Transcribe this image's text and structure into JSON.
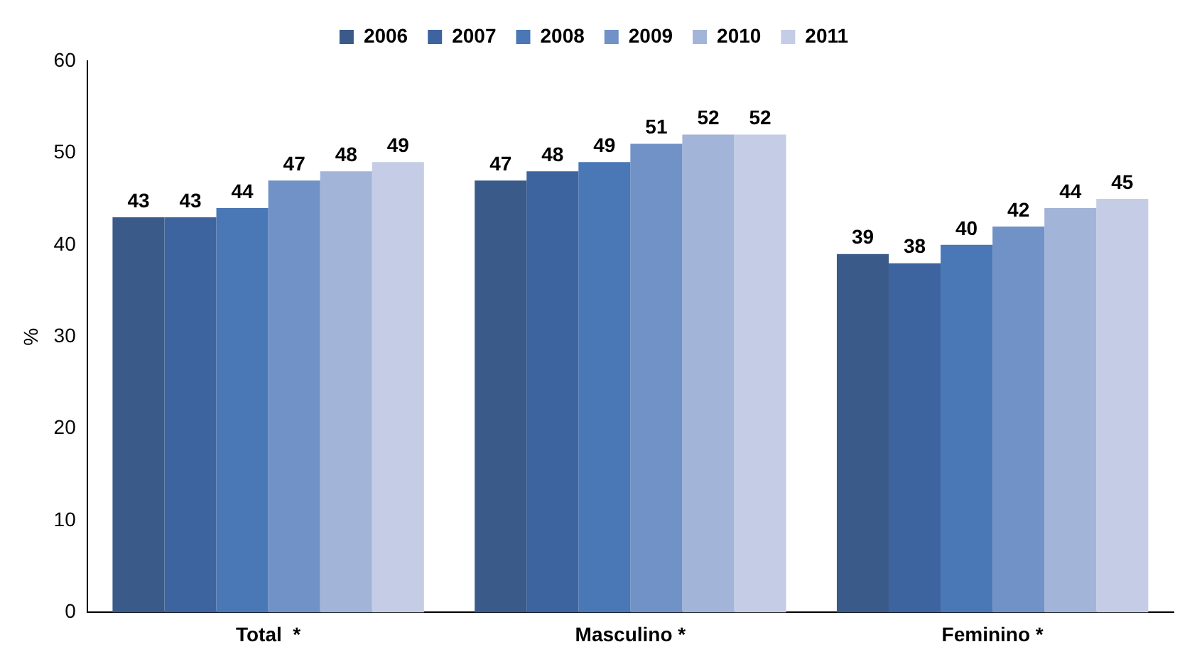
{
  "chart_data": {
    "type": "bar",
    "ylabel": "%",
    "categories": [
      "Total  *",
      "Masculino *",
      "Feminino *"
    ],
    "series": [
      {
        "name": "2006",
        "color": "#3a5a8a",
        "values": [
          43,
          47,
          39
        ]
      },
      {
        "name": "2007",
        "color": "#3e649f",
        "values": [
          43,
          48,
          38
        ]
      },
      {
        "name": "2008",
        "color": "#4a77b6",
        "values": [
          44,
          49,
          40
        ]
      },
      {
        "name": "2009",
        "color": "#7192c6",
        "values": [
          47,
          51,
          42
        ]
      },
      {
        "name": "2010",
        "color": "#a2b4d8",
        "values": [
          48,
          52,
          44
        ]
      },
      {
        "name": "2011",
        "color": "#c4cde5",
        "values": [
          49,
          52,
          45
        ]
      }
    ],
    "ylim": [
      0,
      60
    ],
    "yticks": [
      0,
      10,
      20,
      30,
      40,
      50,
      60
    ],
    "grid": false,
    "legend": "top",
    "data_labels": true
  }
}
